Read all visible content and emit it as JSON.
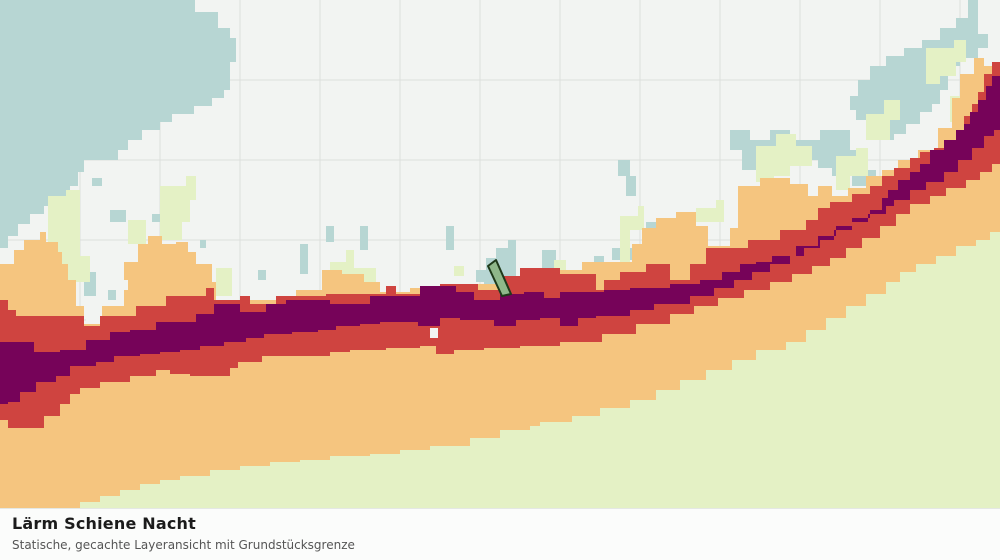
{
  "caption": {
    "title": "Lärm Schiene Nacht",
    "subtitle": "Statische, gecachte Layeransicht mit Grundstücksgrenze"
  },
  "colors": {
    "background": "#f2f4f2",
    "grid": "#dcdfdc",
    "water": "#b7d6d3",
    "noise_level_1": "#e4f1c5",
    "noise_level_2": "#f5c57f",
    "noise_level_3": "#cf4440",
    "noise_level_4": "#760359",
    "parcel_fill": "#8fb88a",
    "parcel_stroke": "#1f3a1a"
  },
  "layers": [
    "water",
    "noise_level_1",
    "noise_level_2",
    "noise_level_3",
    "noise_level_4",
    "parcel_boundary"
  ]
}
